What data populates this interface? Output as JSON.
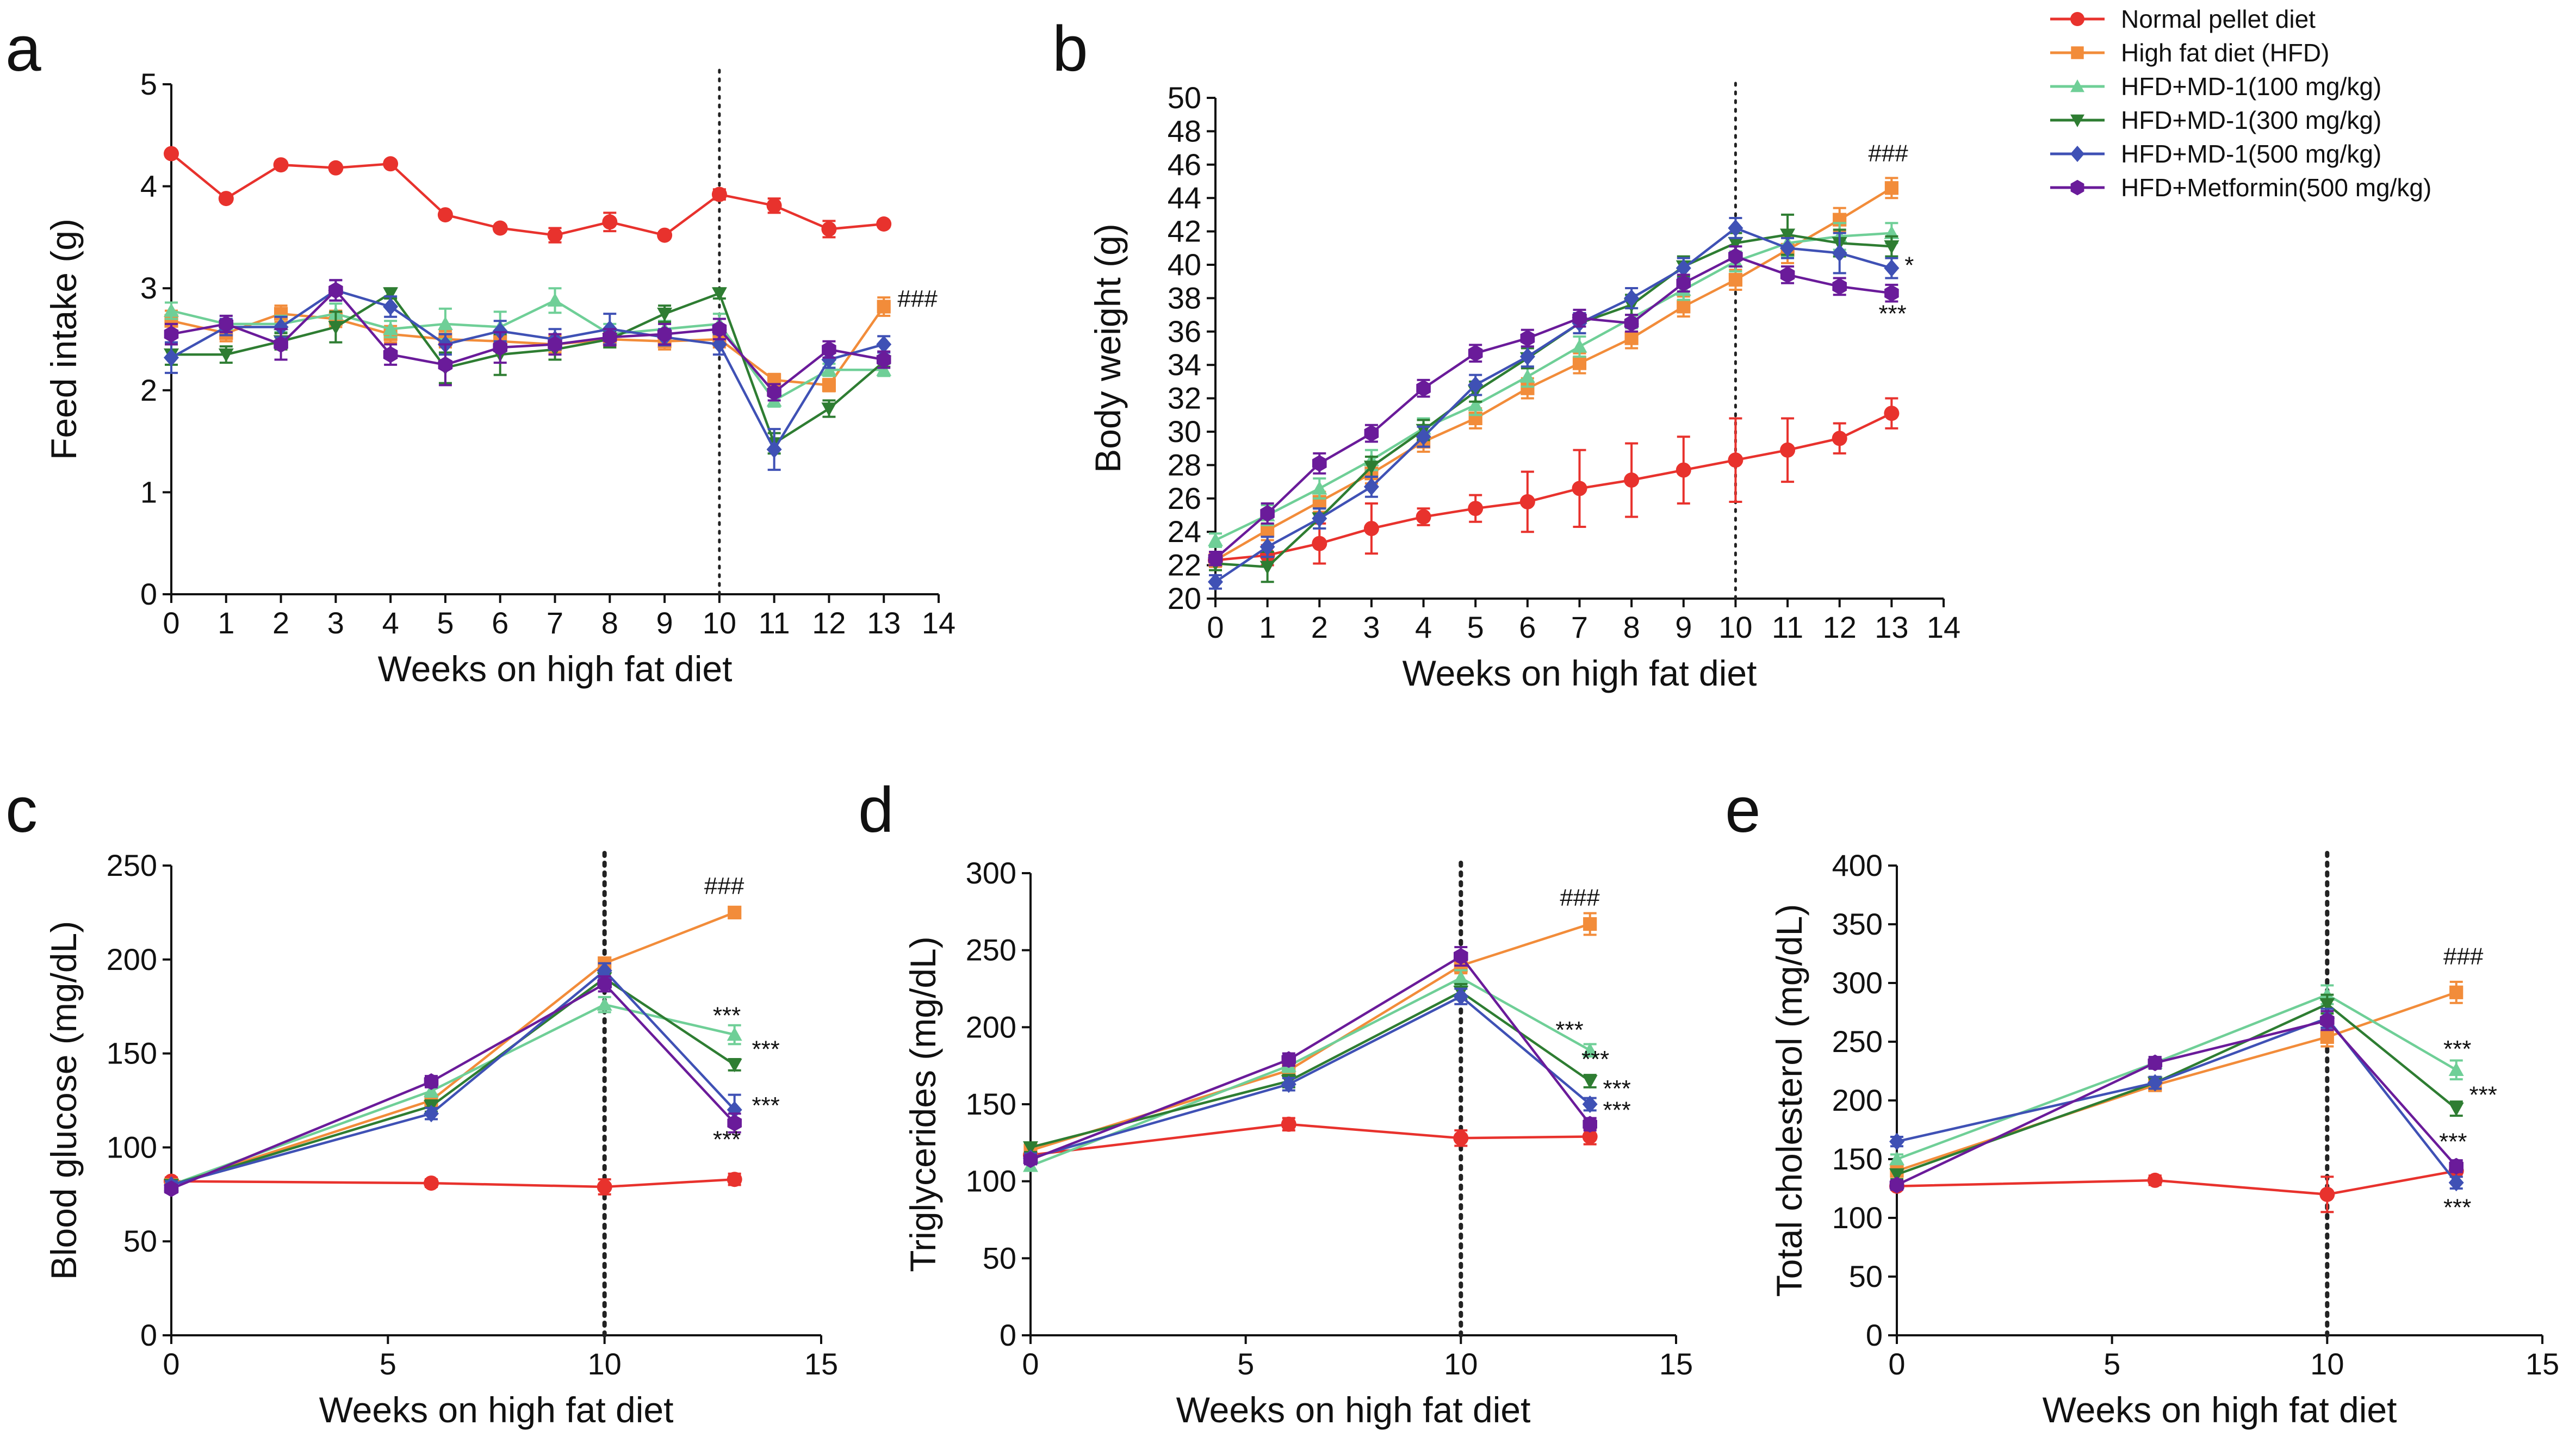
{
  "legend": [
    {
      "name": "Normal pellet diet",
      "color": "#e8322d",
      "marker": "circle"
    },
    {
      "name": "High fat diet (HFD)",
      "color": "#f28c3a",
      "marker": "square"
    },
    {
      "name": "HFD+MD-1(100 mg/kg)",
      "color": "#6fcf97",
      "marker": "triangle-up"
    },
    {
      "name": "HFD+MD-1(300 mg/kg)",
      "color": "#2e7d32",
      "marker": "triangle-down"
    },
    {
      "name": "HFD+MD-1(500 mg/kg)",
      "color": "#3f51b5",
      "marker": "diamond"
    },
    {
      "name": "HFD+Metformin(500 mg/kg)",
      "color": "#6a1b9a",
      "marker": "hexagon"
    }
  ],
  "chart_data": [
    {
      "id": "a",
      "panel": "a",
      "type": "line",
      "xlabel": "Weeks on high fat diet",
      "ylabel": "Feed intake (g)",
      "xlim": [
        0,
        14
      ],
      "ylim": [
        0,
        5
      ],
      "xticks": [
        0,
        1,
        2,
        3,
        4,
        5,
        6,
        7,
        8,
        9,
        10,
        11,
        12,
        13,
        14
      ],
      "yticks": [
        0,
        1,
        2,
        3,
        4,
        5
      ],
      "vline": 10,
      "vline_style": "thin",
      "x": [
        0,
        1,
        2,
        3,
        4,
        5,
        6,
        7,
        8,
        9,
        10,
        11,
        12,
        13
      ],
      "series": [
        {
          "name": "Normal pellet diet",
          "values": [
            4.32,
            3.88,
            4.21,
            4.18,
            4.22,
            3.72,
            3.59,
            3.52,
            3.65,
            3.52,
            3.92,
            3.81,
            3.58,
            3.63
          ],
          "err": [
            0.03,
            0.03,
            0.03,
            0.03,
            0.03,
            0.03,
            0.03,
            0.07,
            0.09,
            0.03,
            0.05,
            0.07,
            0.08,
            0.03
          ]
        },
        {
          "name": "High fat diet (HFD)",
          "values": [
            2.68,
            2.56,
            2.75,
            2.7,
            2.55,
            2.5,
            2.48,
            2.45,
            2.5,
            2.48,
            2.5,
            2.1,
            2.05,
            2.82
          ],
          "err": [
            0.1,
            0.08,
            0.08,
            0.08,
            0.08,
            0.08,
            0.08,
            0.08,
            0.08,
            0.08,
            0.08,
            0.06,
            0.06,
            0.09
          ]
        },
        {
          "name": "HFD+MD-1(100 mg/kg)",
          "values": [
            2.78,
            2.65,
            2.65,
            2.75,
            2.6,
            2.65,
            2.62,
            2.88,
            2.55,
            2.6,
            2.65,
            1.9,
            2.2,
            2.2
          ],
          "err": [
            0.08,
            0.08,
            0.08,
            0.1,
            0.08,
            0.15,
            0.15,
            0.12,
            0.1,
            0.08,
            0.1,
            0.06,
            0.06,
            0.06
          ]
        },
        {
          "name": "HFD+MD-1(300 mg/kg)",
          "values": [
            2.35,
            2.35,
            2.48,
            2.62,
            2.95,
            2.22,
            2.35,
            2.4,
            2.5,
            2.75,
            2.95,
            1.48,
            1.82,
            2.28
          ],
          "err": [
            0.1,
            0.08,
            0.08,
            0.15,
            0.05,
            0.15,
            0.2,
            0.1,
            0.08,
            0.08,
            0.05,
            0.1,
            0.08,
            0.05
          ]
        },
        {
          "name": "HFD+MD-1(500 mg/kg)",
          "values": [
            2.32,
            2.62,
            2.62,
            2.98,
            2.82,
            2.45,
            2.58,
            2.5,
            2.6,
            2.52,
            2.45,
            1.42,
            2.3,
            2.45
          ],
          "err": [
            0.15,
            0.08,
            0.1,
            0.1,
            0.1,
            0.1,
            0.1,
            0.1,
            0.15,
            0.08,
            0.1,
            0.2,
            0.08,
            0.08
          ]
        },
        {
          "name": "HFD+Metformin(500 mg/kg)",
          "values": [
            2.55,
            2.65,
            2.45,
            2.98,
            2.35,
            2.25,
            2.42,
            2.45,
            2.52,
            2.55,
            2.6,
            1.98,
            2.4,
            2.3
          ],
          "err": [
            0.1,
            0.08,
            0.15,
            0.1,
            0.1,
            0.2,
            0.15,
            0.1,
            0.08,
            0.1,
            0.1,
            0.08,
            0.08,
            0.08
          ]
        }
      ],
      "annotations": [
        {
          "text": "###",
          "x": 13.25,
          "y": 2.82
        }
      ]
    },
    {
      "id": "b",
      "panel": "b",
      "type": "line",
      "xlabel": "Weeks on high fat diet",
      "ylabel": "Body weight (g)",
      "xlim": [
        0,
        14
      ],
      "ylim": [
        20,
        50
      ],
      "xticks": [
        0,
        1,
        2,
        3,
        4,
        5,
        6,
        7,
        8,
        9,
        10,
        11,
        12,
        13,
        14
      ],
      "yticks": [
        20,
        22,
        24,
        26,
        28,
        30,
        32,
        34,
        36,
        38,
        40,
        42,
        44,
        46,
        48,
        50
      ],
      "vline": 10,
      "vline_style": "thin",
      "x": [
        0,
        1,
        2,
        3,
        4,
        5,
        6,
        7,
        8,
        9,
        10,
        11,
        12,
        13
      ],
      "series": [
        {
          "name": "Normal pellet diet",
          "values": [
            22.3,
            22.6,
            23.3,
            24.2,
            24.9,
            25.4,
            25.8,
            26.6,
            27.1,
            27.7,
            28.3,
            28.9,
            29.6,
            31.1
          ],
          "err": [
            0.4,
            0.6,
            1.2,
            1.5,
            0.5,
            0.8,
            1.8,
            2.3,
            2.2,
            2.0,
            2.5,
            1.9,
            0.9,
            0.9
          ]
        },
        {
          "name": "High fat diet (HFD)",
          "values": [
            22.3,
            24.1,
            25.8,
            27.5,
            29.4,
            30.8,
            32.6,
            34.1,
            35.6,
            37.5,
            39.1,
            40.9,
            42.7,
            44.6
          ],
          "err": [
            0.4,
            0.6,
            0.6,
            0.6,
            0.6,
            0.6,
            0.6,
            0.6,
            0.6,
            0.6,
            0.6,
            0.8,
            0.7,
            0.6
          ]
        },
        {
          "name": "HFD+MD-1(100 mg/kg)",
          "values": [
            23.5,
            25.0,
            26.6,
            28.3,
            30.2,
            31.6,
            33.3,
            35.1,
            36.8,
            38.5,
            40.2,
            41.3,
            41.7,
            41.9
          ],
          "err": [
            0.4,
            0.6,
            0.6,
            0.6,
            0.6,
            0.6,
            0.6,
            0.6,
            0.6,
            0.6,
            0.6,
            0.8,
            0.8,
            0.6
          ]
        },
        {
          "name": "HFD+MD-1(300 mg/kg)",
          "values": [
            22.1,
            21.9,
            24.8,
            27.9,
            30.1,
            32.4,
            34.4,
            36.5,
            37.6,
            39.9,
            41.3,
            41.8,
            41.3,
            41.1
          ],
          "err": [
            0.4,
            0.9,
            0.6,
            0.6,
            0.6,
            0.6,
            0.6,
            0.6,
            0.6,
            0.6,
            0.6,
            1.2,
            0.8,
            0.6
          ]
        },
        {
          "name": "HFD+MD-1(500 mg/kg)",
          "values": [
            21.0,
            23.1,
            24.8,
            26.7,
            29.7,
            32.8,
            34.5,
            36.5,
            38.0,
            39.8,
            42.2,
            41.0,
            40.7,
            39.8
          ],
          "err": [
            0.4,
            0.6,
            0.6,
            0.6,
            0.6,
            0.6,
            0.6,
            0.6,
            0.6,
            0.6,
            0.6,
            0.6,
            1.2,
            0.6
          ]
        },
        {
          "name": "HFD+Metformin(500 mg/kg)",
          "values": [
            22.4,
            25.1,
            28.1,
            29.9,
            32.6,
            34.7,
            35.6,
            36.8,
            36.5,
            38.9,
            40.5,
            39.4,
            38.7,
            38.3
          ],
          "err": [
            0.4,
            0.6,
            0.6,
            0.5,
            0.5,
            0.5,
            0.5,
            0.5,
            0.5,
            0.5,
            0.6,
            0.5,
            0.5,
            0.5
          ]
        }
      ],
      "annotations": [
        {
          "text": "###",
          "x": 12.55,
          "y": 46.2
        },
        {
          "text": "*",
          "x": 13.25,
          "y": 39.5
        },
        {
          "text": "***",
          "x": 12.75,
          "y": 36.6
        }
      ]
    },
    {
      "id": "c",
      "panel": "c",
      "type": "line",
      "xlabel": "Weeks on high fat diet",
      "ylabel": "Blood glucose (mg/dL)",
      "xlim": [
        0,
        15
      ],
      "ylim": [
        0,
        250
      ],
      "xticks": [
        0,
        5,
        10,
        15
      ],
      "yticks": [
        0,
        50,
        100,
        150,
        200,
        250
      ],
      "vline": 10,
      "vline_style": "bold",
      "x": [
        0,
        6,
        10,
        13
      ],
      "series": [
        {
          "name": "Normal pellet diet",
          "values": [
            82,
            81,
            79,
            83
          ],
          "err": [
            2,
            2,
            4,
            3
          ]
        },
        {
          "name": "High fat diet (HFD)",
          "values": [
            80,
            125,
            198,
            225
          ],
          "err": [
            2,
            3,
            3,
            3
          ]
        },
        {
          "name": "HFD+MD-1(100 mg/kg)",
          "values": [
            80,
            130,
            176,
            160
          ],
          "err": [
            2,
            3,
            4,
            5
          ]
        },
        {
          "name": "HFD+MD-1(300 mg/kg)",
          "values": [
            80,
            122,
            190,
            144
          ],
          "err": [
            2,
            3,
            4,
            3
          ]
        },
        {
          "name": "HFD+MD-1(500 mg/kg)",
          "values": [
            80,
            118,
            194,
            120
          ],
          "err": [
            2,
            3,
            4,
            8
          ]
        },
        {
          "name": "HFD+Metformin(500 mg/kg)",
          "values": [
            78,
            135,
            187,
            113
          ],
          "err": [
            2,
            3,
            4,
            5
          ]
        }
      ],
      "annotations": [
        {
          "text": "###",
          "x": 12.3,
          "y": 235
        },
        {
          "text": "***",
          "x": 12.5,
          "y": 166
        },
        {
          "text": "***",
          "x": 13.4,
          "y": 148
        },
        {
          "text": "***",
          "x": 13.4,
          "y": 118
        },
        {
          "text": "***",
          "x": 12.5,
          "y": 100
        }
      ]
    },
    {
      "id": "d",
      "panel": "d",
      "type": "line",
      "xlabel": "Weeks on high fat diet",
      "ylabel": "Triglycerides (mg/dL)",
      "xlim": [
        0,
        15
      ],
      "ylim": [
        0,
        300
      ],
      "xticks": [
        0,
        5,
        10,
        15
      ],
      "yticks": [
        0,
        50,
        100,
        150,
        200,
        250,
        300
      ],
      "vline": 10,
      "vline_style": "bold",
      "x": [
        0,
        6,
        10,
        13
      ],
      "series": [
        {
          "name": "Normal pellet diet",
          "values": [
            117,
            137,
            128,
            129
          ],
          "err": [
            3,
            4,
            5,
            5
          ]
        },
        {
          "name": "High fat diet (HFD)",
          "values": [
            120,
            172,
            240,
            267
          ],
          "err": [
            3,
            4,
            5,
            7
          ]
        },
        {
          "name": "HFD+MD-1(100 mg/kg)",
          "values": [
            110,
            175,
            232,
            185
          ],
          "err": [
            3,
            4,
            5,
            4
          ]
        },
        {
          "name": "HFD+MD-1(300 mg/kg)",
          "values": [
            122,
            165,
            223,
            165
          ],
          "err": [
            3,
            4,
            5,
            4
          ]
        },
        {
          "name": "HFD+MD-1(500 mg/kg)",
          "values": [
            115,
            163,
            220,
            150
          ],
          "err": [
            3,
            4,
            5,
            4
          ]
        },
        {
          "name": "HFD+Metformin(500 mg/kg)",
          "values": [
            114,
            179,
            246,
            137
          ],
          "err": [
            3,
            4,
            6,
            4
          ]
        }
      ],
      "annotations": [
        {
          "text": "###",
          "x": 12.3,
          "y": 279
        },
        {
          "text": "***",
          "x": 12.2,
          "y": 193
        },
        {
          "text": "***",
          "x": 12.8,
          "y": 174
        },
        {
          "text": "***",
          "x": 13.3,
          "y": 155
        },
        {
          "text": "***",
          "x": 13.3,
          "y": 141
        }
      ]
    },
    {
      "id": "e",
      "panel": "e",
      "type": "line",
      "xlabel": "Weeks on high fat diet",
      "ylabel": "Total cholesterol (mg/dL)",
      "xlim": [
        0,
        15
      ],
      "ylim": [
        0,
        400
      ],
      "xticks": [
        0,
        5,
        10,
        15
      ],
      "yticks": [
        0,
        50,
        100,
        150,
        200,
        250,
        300,
        350,
        400
      ],
      "vline": 10,
      "vline_style": "bold",
      "x": [
        0,
        6,
        10,
        13
      ],
      "series": [
        {
          "name": "Normal pellet diet",
          "values": [
            127,
            132,
            120,
            140
          ],
          "err": [
            3,
            4,
            15,
            5
          ]
        },
        {
          "name": "High fat diet (HFD)",
          "values": [
            140,
            213,
            254,
            292
          ],
          "err": [
            4,
            5,
            8,
            9
          ]
        },
        {
          "name": "HFD+MD-1(100 mg/kg)",
          "values": [
            150,
            232,
            290,
            226
          ],
          "err": [
            4,
            5,
            8,
            8
          ]
        },
        {
          "name": "HFD+MD-1(300 mg/kg)",
          "values": [
            137,
            215,
            282,
            193
          ],
          "err": [
            4,
            5,
            8,
            6
          ]
        },
        {
          "name": "HFD+MD-1(500 mg/kg)",
          "values": [
            165,
            215,
            270,
            130
          ],
          "err": [
            4,
            5,
            8,
            5
          ]
        },
        {
          "name": "HFD+Metformin(500 mg/kg)",
          "values": [
            128,
            232,
            268,
            144
          ],
          "err": [
            4,
            5,
            8,
            5
          ]
        }
      ],
      "annotations": [
        {
          "text": "###",
          "x": 12.7,
          "y": 316
        },
        {
          "text": "***",
          "x": 12.7,
          "y": 237
        },
        {
          "text": "***",
          "x": 13.3,
          "y": 198
        },
        {
          "text": "***",
          "x": 12.6,
          "y": 158
        },
        {
          "text": "***",
          "x": 12.7,
          "y": 102
        }
      ]
    }
  ]
}
